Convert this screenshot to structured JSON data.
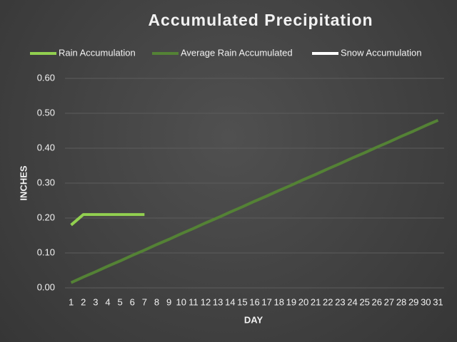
{
  "chart_data": {
    "type": "line",
    "title": "Accumulated Precipitation",
    "x_label": "DAY",
    "y_label": "INCHES",
    "categories": [
      "1",
      "2",
      "3",
      "4",
      "5",
      "6",
      "7",
      "8",
      "9",
      "10",
      "11",
      "12",
      "13",
      "14",
      "15",
      "16",
      "17",
      "18",
      "19",
      "20",
      "21",
      "22",
      "23",
      "24",
      "25",
      "26",
      "27",
      "28",
      "29",
      "30",
      "31"
    ],
    "series": [
      {
        "name": "Rain Accumulation",
        "color": "#92d050",
        "values": [
          0.18,
          0.21,
          0.21,
          0.21,
          0.21,
          0.21,
          0.21,
          null,
          null,
          null,
          null,
          null,
          null,
          null,
          null,
          null,
          null,
          null,
          null,
          null,
          null,
          null,
          null,
          null,
          null,
          null,
          null,
          null,
          null,
          null,
          null
        ]
      },
      {
        "name": "Average Rain Accumulated",
        "color": "#548235",
        "values": [
          0.015,
          0.031,
          0.046,
          0.062,
          0.077,
          0.093,
          0.108,
          0.124,
          0.139,
          0.155,
          0.17,
          0.186,
          0.201,
          0.217,
          0.232,
          0.248,
          0.263,
          0.279,
          0.294,
          0.31,
          0.325,
          0.341,
          0.356,
          0.372,
          0.387,
          0.403,
          0.418,
          0.434,
          0.449,
          0.465,
          0.48
        ]
      },
      {
        "name": "Snow Accumulation",
        "color": "#ffffff",
        "values": [
          null,
          null,
          null,
          null,
          null,
          null,
          null,
          null,
          null,
          null,
          null,
          null,
          null,
          null,
          null,
          null,
          null,
          null,
          null,
          null,
          null,
          null,
          null,
          null,
          null,
          null,
          null,
          null,
          null,
          null,
          null
        ]
      }
    ],
    "ylim": [
      0,
      0.6
    ],
    "yticks": [
      {
        "value": 0,
        "label": "0.00"
      },
      {
        "value": 0.1,
        "label": "0.10"
      },
      {
        "value": 0.2,
        "label": "0.20"
      },
      {
        "value": 0.3,
        "label": "0.30"
      },
      {
        "value": 0.4,
        "label": "0.40"
      },
      {
        "value": 0.5,
        "label": "0.50"
      },
      {
        "value": 0.6,
        "label": "0.60"
      }
    ],
    "grid": true,
    "legend": "top"
  }
}
